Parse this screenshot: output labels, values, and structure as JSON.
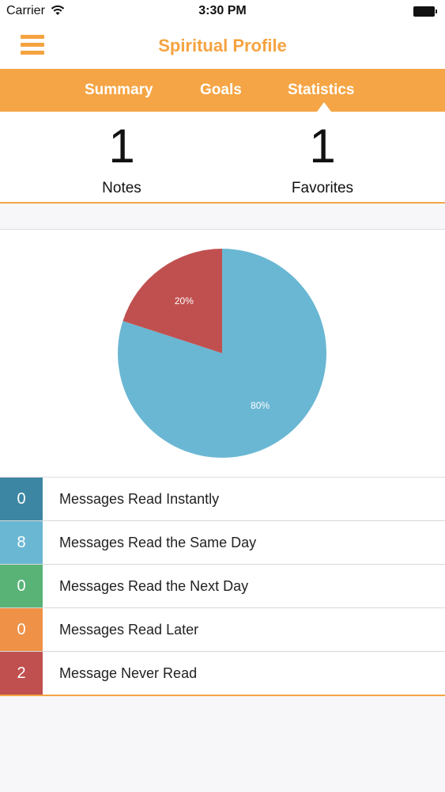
{
  "status_bar": {
    "carrier": "Carrier",
    "time": "3:30 PM"
  },
  "nav": {
    "title": "Spiritual Profile",
    "menu_icon": "hamburger-menu-icon"
  },
  "tabs": [
    {
      "label": "Summary",
      "active": false
    },
    {
      "label": "Goals",
      "active": false
    },
    {
      "label": "Statistics",
      "active": true
    }
  ],
  "counts": {
    "notes": {
      "value": "1",
      "label": "Notes"
    },
    "favorites": {
      "value": "1",
      "label": "Favorites"
    }
  },
  "chart_data": {
    "type": "pie",
    "slices": [
      {
        "value": 80,
        "label": "80%",
        "color": "#6ab7d3"
      },
      {
        "value": 20,
        "label": "20%",
        "color": "#c0504f"
      }
    ]
  },
  "stats": [
    {
      "count": "0",
      "label": "Messages Read Instantly",
      "color": "#3d86a3"
    },
    {
      "count": "8",
      "label": "Messages Read the Same Day",
      "color": "#6ab7d3"
    },
    {
      "count": "0",
      "label": "Messages Read the Next Day",
      "color": "#59b377"
    },
    {
      "count": "0",
      "label": "Messages Read Later",
      "color": "#ef9147"
    },
    {
      "count": "2",
      "label": "Message Never Read",
      "color": "#c0504f"
    }
  ],
  "colors": {
    "accent": "#f5a545"
  }
}
